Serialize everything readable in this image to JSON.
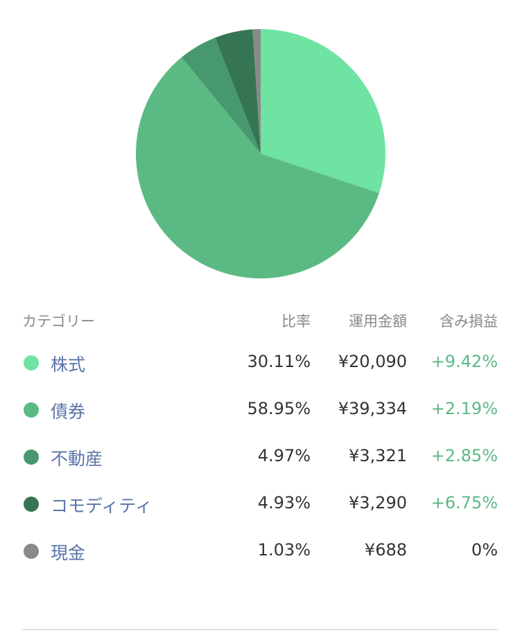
{
  "chart_data": {
    "type": "pie",
    "values": [
      30.11,
      58.95,
      4.97,
      4.93,
      1.03
    ],
    "colors": [
      "#6fe3a2",
      "#5bba83",
      "#47986e",
      "#357553",
      "#8a8a8a"
    ]
  },
  "table": {
    "headers": {
      "category": "カテゴリー",
      "ratio": "比率",
      "amount": "運用金額",
      "profit_loss": "含み損益"
    },
    "rows": [
      {
        "name": "株式",
        "ratio": "30.11%",
        "amount": "¥20,090",
        "profit_loss": "+9.42%",
        "color": "#6fe3a2"
      },
      {
        "name": "債券",
        "ratio": "58.95%",
        "amount": "¥39,334",
        "profit_loss": "+2.19%",
        "color": "#5bba83"
      },
      {
        "name": "不動産",
        "ratio": "4.97%",
        "amount": "¥3,321",
        "profit_loss": "+2.85%",
        "color": "#47986e"
      },
      {
        "name": "コモディティ",
        "ratio": "4.93%",
        "amount": "¥3,290",
        "profit_loss": "+6.75%",
        "color": "#357553"
      },
      {
        "name": "現金",
        "ratio": "1.03%",
        "amount": "¥688",
        "profit_loss": "0%",
        "color": "#8a8a8a"
      }
    ]
  }
}
